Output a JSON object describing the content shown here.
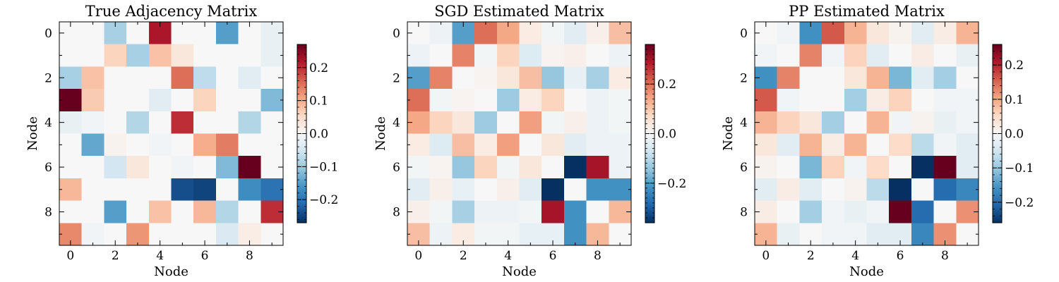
{
  "chart_data": [
    {
      "type": "heatmap",
      "title": "True Adjacency Matrix",
      "xlabel": "Node",
      "ylabel": "Node",
      "x_ticks": [
        0,
        2,
        4,
        6,
        8
      ],
      "y_ticks": [
        0,
        2,
        4,
        6,
        8
      ],
      "colormap": "RdBu_r",
      "color_range": [
        -0.27,
        0.27
      ],
      "colorbar_ticks": [
        -0.2,
        -0.1,
        0.0,
        0.1,
        0.2
      ],
      "colorbar_tick_labels": [
        "−0.2",
        "−0.1",
        "0.0",
        "0.1",
        "0.2"
      ],
      "matrix": [
        [
          0.0,
          0.0,
          -0.09,
          0.0,
          0.22,
          0.0,
          0.0,
          -0.15,
          0.0,
          -0.02
        ],
        [
          0.0,
          0.0,
          0.06,
          -0.09,
          0.08,
          0.03,
          0.0,
          0.0,
          0.0,
          -0.02
        ],
        [
          -0.09,
          0.08,
          0.0,
          0.0,
          0.0,
          0.15,
          -0.07,
          0.0,
          -0.03,
          0.0
        ],
        [
          0.27,
          0.07,
          0.0,
          0.0,
          -0.03,
          0.0,
          0.06,
          0.0,
          0.0,
          -0.12
        ],
        [
          -0.02,
          -0.01,
          0.0,
          -0.08,
          0.0,
          0.2,
          0.0,
          0.0,
          -0.08,
          0.0
        ],
        [
          0.0,
          -0.14,
          0.01,
          0.0,
          -0.01,
          0.0,
          0.1,
          0.14,
          0.0,
          0.0
        ],
        [
          0.0,
          0.0,
          -0.05,
          0.03,
          0.0,
          -0.01,
          0.0,
          -0.12,
          0.27,
          0.0
        ],
        [
          0.09,
          0.0,
          0.0,
          0.0,
          0.0,
          -0.24,
          -0.25,
          0.0,
          -0.17,
          -0.2
        ],
        [
          0.0,
          0.0,
          -0.15,
          0.0,
          0.08,
          0.0,
          0.09,
          -0.08,
          0.0,
          0.2
        ],
        [
          0.13,
          -0.01,
          0.0,
          0.12,
          0.0,
          0.0,
          0.0,
          -0.04,
          0.02,
          0.0
        ]
      ]
    },
    {
      "type": "heatmap",
      "title": "SGD Estimated Matrix",
      "xlabel": "Node",
      "ylabel": "Node",
      "x_ticks": [
        0,
        2,
        4,
        6,
        8
      ],
      "y_ticks": [
        0,
        2,
        4,
        6,
        8
      ],
      "colormap": "RdBu_r",
      "color_range": [
        -0.36,
        0.36
      ],
      "colorbar_ticks": [
        -0.2,
        0.0,
        0.2
      ],
      "colorbar_tick_labels": [
        "−0.2",
        "0.0",
        "0.2"
      ],
      "matrix": [
        [
          0.0,
          -0.02,
          -0.2,
          0.2,
          0.14,
          0.03,
          -0.01,
          -0.04,
          0.02,
          0.11
        ],
        [
          -0.02,
          0.0,
          0.18,
          -0.01,
          0.08,
          -0.05,
          0.01,
          0.02,
          0.0,
          -0.02
        ],
        [
          -0.2,
          0.18,
          0.0,
          0.01,
          0.04,
          0.11,
          -0.14,
          -0.03,
          -0.12,
          0.03
        ],
        [
          0.2,
          -0.01,
          0.01,
          0.0,
          -0.13,
          0.03,
          0.08,
          0.0,
          -0.02,
          -0.01
        ],
        [
          0.14,
          0.08,
          0.04,
          -0.13,
          0.0,
          0.15,
          -0.01,
          0.02,
          -0.02,
          -0.01
        ],
        [
          0.03,
          -0.05,
          0.11,
          0.03,
          0.15,
          0.0,
          0.04,
          -0.04,
          -0.02,
          -0.02
        ],
        [
          -0.01,
          0.01,
          -0.14,
          0.08,
          -0.01,
          0.04,
          0.0,
          -0.36,
          0.3,
          -0.02
        ],
        [
          -0.04,
          0.02,
          -0.03,
          0.0,
          0.02,
          -0.04,
          -0.36,
          0.0,
          -0.22,
          -0.22
        ],
        [
          0.02,
          -0.01,
          -0.12,
          -0.02,
          -0.02,
          -0.01,
          0.3,
          -0.22,
          0.0,
          0.12
        ],
        [
          0.11,
          -0.02,
          0.03,
          -0.01,
          -0.01,
          -0.03,
          -0.03,
          -0.22,
          0.12,
          0.0
        ]
      ]
    },
    {
      "type": "heatmap",
      "title": "PP Estimated Matrix",
      "xlabel": "Node",
      "ylabel": "Node",
      "x_ticks": [
        0,
        2,
        4,
        6,
        8
      ],
      "y_ticks": [
        0,
        2,
        4,
        6,
        8
      ],
      "colormap": "RdBu_r",
      "color_range": [
        -0.26,
        0.26
      ],
      "colorbar_ticks": [
        -0.2,
        -0.1,
        0.0,
        0.1,
        0.2
      ],
      "colorbar_tick_labels": [
        "−0.2",
        "−0.1",
        "0.0",
        "0.1",
        "0.2"
      ],
      "matrix": [
        [
          0.0,
          -0.01,
          -0.16,
          0.16,
          0.09,
          0.03,
          0.01,
          -0.03,
          0.02,
          0.09
        ],
        [
          -0.01,
          0.0,
          0.13,
          -0.01,
          0.06,
          -0.03,
          0.0,
          0.02,
          0.0,
          -0.02
        ],
        [
          -0.16,
          0.13,
          0.0,
          0.0,
          0.03,
          0.09,
          -0.12,
          -0.03,
          -0.09,
          0.0
        ],
        [
          0.16,
          -0.01,
          0.0,
          0.0,
          -0.09,
          0.02,
          0.06,
          0.0,
          -0.01,
          -0.01
        ],
        [
          0.09,
          0.06,
          0.03,
          -0.09,
          0.0,
          0.09,
          -0.01,
          0.01,
          -0.02,
          -0.01
        ],
        [
          0.03,
          -0.03,
          0.09,
          0.02,
          0.09,
          0.0,
          0.05,
          -0.07,
          -0.01,
          -0.03
        ],
        [
          0.01,
          0.0,
          -0.12,
          0.06,
          -0.01,
          0.05,
          0.0,
          -0.26,
          0.26,
          -0.03
        ],
        [
          -0.03,
          0.02,
          -0.03,
          0.0,
          0.01,
          -0.07,
          -0.26,
          0.0,
          -0.2,
          -0.17
        ],
        [
          0.02,
          0.0,
          -0.09,
          -0.01,
          -0.02,
          -0.01,
          0.26,
          -0.2,
          0.0,
          0.12
        ],
        [
          0.09,
          -0.02,
          0.0,
          -0.01,
          -0.01,
          -0.03,
          -0.03,
          -0.17,
          0.12,
          0.0
        ]
      ]
    }
  ]
}
